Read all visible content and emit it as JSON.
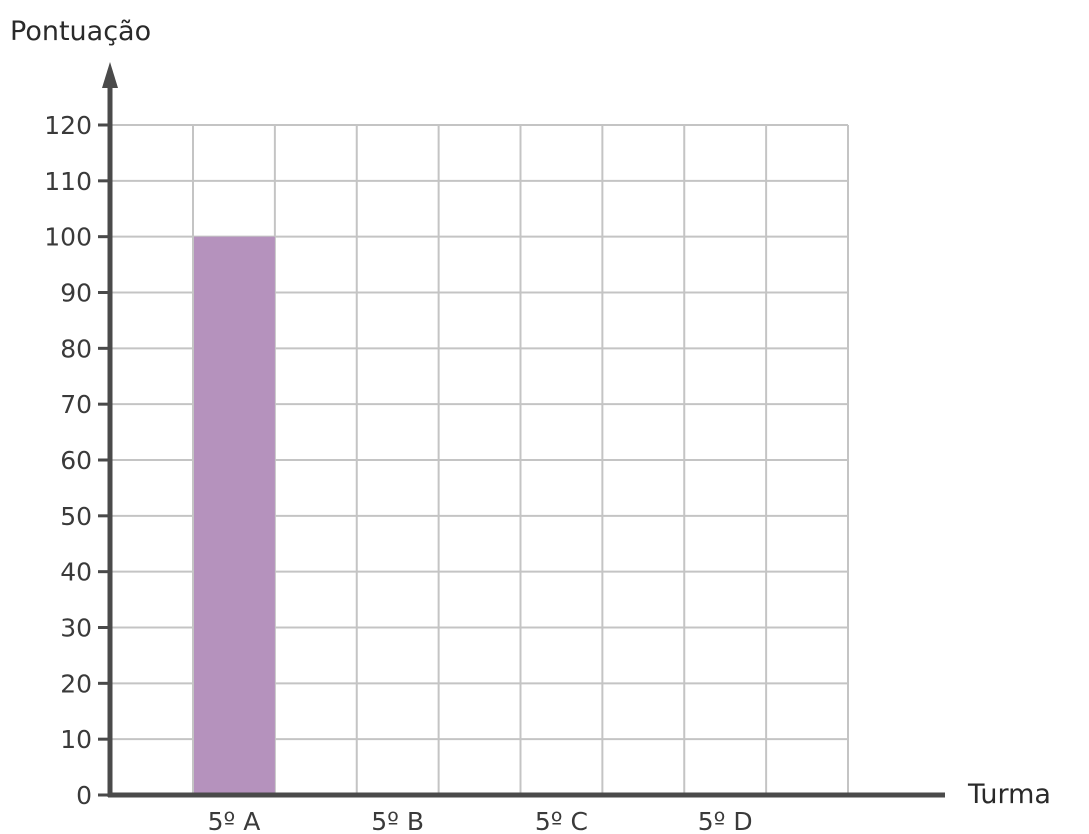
{
  "chart_data": {
    "type": "bar",
    "xlabel": "Turma",
    "ylabel": "Pontuação",
    "categories": [
      "5º A",
      "5º B",
      "5º C",
      "5º D"
    ],
    "values": [
      100,
      null,
      null,
      null
    ],
    "ylim": [
      0,
      120
    ],
    "yticks": [
      0,
      10,
      20,
      30,
      40,
      50,
      60,
      70,
      80,
      90,
      100,
      110,
      120
    ],
    "grid": true,
    "bar_color": "#b592bd",
    "axis_color": "#4a4a4a",
    "grid_color": "#c4c4c4"
  }
}
